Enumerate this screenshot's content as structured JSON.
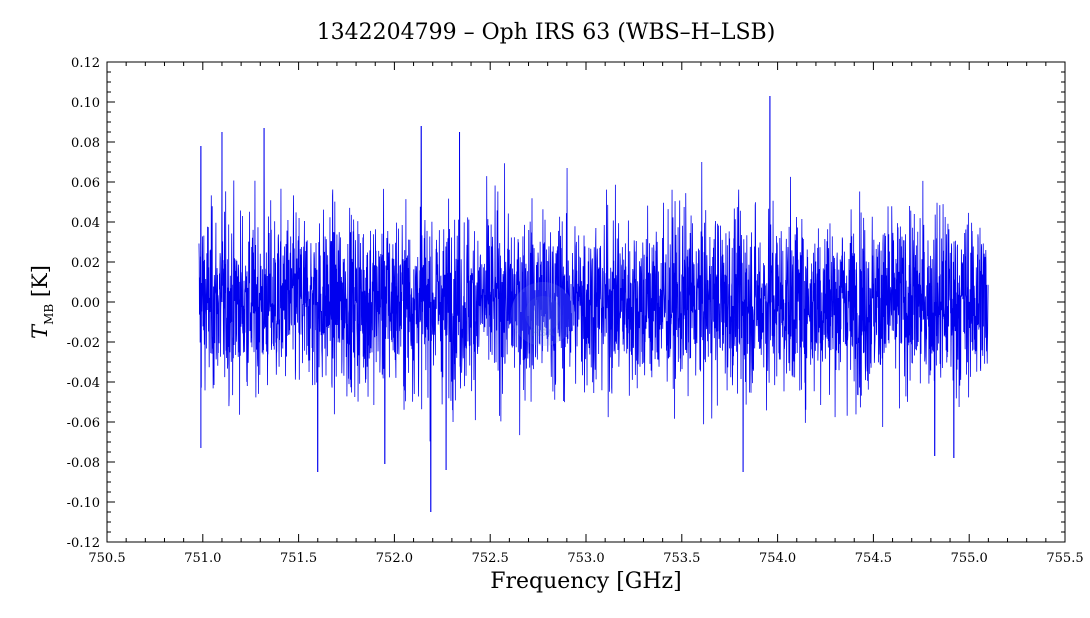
{
  "chart_data": {
    "type": "line",
    "title": "1342204799 – Oph IRS 63 (WBS–H–LSB)",
    "xlabel": "Frequency [GHz]",
    "ylabel_main": "T",
    "ylabel_sub": "MB",
    "ylabel_unit": " [K]",
    "xlim": [
      750.5,
      755.5
    ],
    "ylim": [
      -0.12,
      0.12
    ],
    "x_ticks": [
      750.5,
      751.0,
      751.5,
      752.0,
      752.5,
      753.0,
      753.5,
      754.0,
      754.5,
      755.0,
      755.5
    ],
    "x_tick_labels": [
      "750.5",
      "751.0",
      "751.5",
      "752.0",
      "752.5",
      "753.0",
      "753.5",
      "754.0",
      "754.5",
      "755.0",
      "755.5"
    ],
    "y_ticks": [
      -0.12,
      -0.1,
      -0.08,
      -0.06,
      -0.04,
      -0.02,
      0.0,
      0.02,
      0.04,
      0.06,
      0.08,
      0.1,
      0.12
    ],
    "y_tick_labels": [
      "-0.12",
      "-0.10",
      "-0.08",
      "-0.06",
      "-0.04",
      "-0.02",
      "0.00",
      "0.02",
      "0.04",
      "0.06",
      "0.08",
      "0.10",
      "0.12"
    ],
    "grid": false,
    "series": [
      {
        "color": "#0000ee",
        "x_start": 750.98,
        "x_end": 755.1,
        "mean": 0.0,
        "rms": 0.022,
        "notable_points": [
          {
            "x": 750.99,
            "y": -0.073
          },
          {
            "x": 750.99,
            "y": 0.078
          },
          {
            "x": 751.1,
            "y": 0.085
          },
          {
            "x": 751.32,
            "y": 0.087
          },
          {
            "x": 751.6,
            "y": -0.085
          },
          {
            "x": 751.95,
            "y": -0.081
          },
          {
            "x": 752.14,
            "y": 0.088
          },
          {
            "x": 752.19,
            "y": -0.105
          },
          {
            "x": 752.27,
            "y": -0.084
          },
          {
            "x": 752.34,
            "y": 0.085
          },
          {
            "x": 753.82,
            "y": -0.085
          },
          {
            "x": 753.96,
            "y": 0.103
          },
          {
            "x": 754.82,
            "y": -0.077
          },
          {
            "x": 754.92,
            "y": -0.078
          }
        ]
      }
    ],
    "watermark": "HSA"
  }
}
